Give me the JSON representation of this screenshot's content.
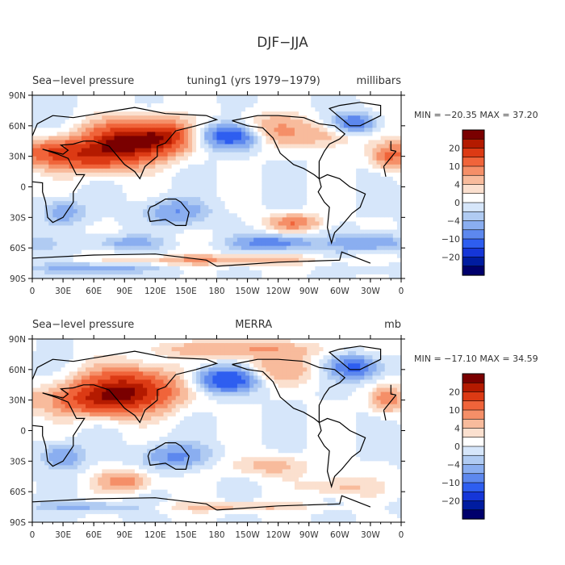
{
  "page": {
    "title": "DJF−JJA"
  },
  "chart_data": [
    {
      "type": "heatmap",
      "title_left": "Sea−level pressure",
      "title_center": "tuning1 (yrs 1979−1979)",
      "units": "millibars",
      "min_max": "MIN = −20.35  MAX =   37.20",
      "x_ticks": [
        "0",
        "30E",
        "60E",
        "90E",
        "120E",
        "150E",
        "180",
        "150W",
        "120W",
        "90W",
        "60W",
        "30W",
        "0"
      ],
      "y_ticks": [
        "90N",
        "60N",
        "30N",
        "0",
        "30S",
        "60S",
        "90S"
      ],
      "xlim": [
        0,
        360
      ],
      "ylim": [
        -90,
        90
      ],
      "fields": [
        {
          "lon": 95,
          "lat": 45,
          "value": 24,
          "wlon": 40,
          "wlat": 18
        },
        {
          "lon": 55,
          "lat": 30,
          "value": 15,
          "wlon": 45,
          "wlat": 15
        },
        {
          "lon": 130,
          "lat": 50,
          "value": 13,
          "wlon": 25,
          "wlat": 15
        },
        {
          "lon": 195,
          "lat": 50,
          "value": -15,
          "wlon": 30,
          "wlat": 12
        },
        {
          "lon": 230,
          "lat": 55,
          "value": 8,
          "wlon": 40,
          "wlat": 15
        },
        {
          "lon": 290,
          "lat": 50,
          "value": 5,
          "wlon": 30,
          "wlat": 12
        },
        {
          "lon": 315,
          "lat": 62,
          "value": -11,
          "wlon": 20,
          "wlat": 10
        },
        {
          "lon": 345,
          "lat": 30,
          "value": 8,
          "wlon": 15,
          "wlat": 12
        },
        {
          "lon": 20,
          "lat": 35,
          "value": 9,
          "wlon": 25,
          "wlat": 12
        },
        {
          "lon": 140,
          "lat": -25,
          "value": -7,
          "wlon": 30,
          "wlat": 12
        },
        {
          "lon": 30,
          "lat": -25,
          "value": -6,
          "wlon": 20,
          "wlat": 12
        },
        {
          "lon": 255,
          "lat": -35,
          "value": 10,
          "wlon": 25,
          "wlat": 8
        },
        {
          "lon": 235,
          "lat": -55,
          "value": -10,
          "wlon": 35,
          "wlat": 7
        },
        {
          "lon": 330,
          "lat": -55,
          "value": -8,
          "wlon": 35,
          "wlat": 8
        },
        {
          "lon": 90,
          "lat": -55,
          "value": -5,
          "wlon": 35,
          "wlat": 7
        },
        {
          "lon": 180,
          "lat": -72,
          "value": 7,
          "wlon": 90,
          "wlat": 5
        },
        {
          "lon": 60,
          "lat": -80,
          "value": -6,
          "wlon": 60,
          "wlat": 5
        }
      ],
      "colorbar": {
        "labels": [
          "20",
          "10",
          "4",
          "0",
          "−4",
          "−10",
          "−20"
        ]
      }
    },
    {
      "type": "heatmap",
      "title_left": "Sea−level pressure",
      "title_center": "MERRA",
      "units": "mb",
      "min_max": "MIN = −17.10  MAX =   34.59",
      "x_ticks": [
        "0",
        "30E",
        "60E",
        "90E",
        "120E",
        "150E",
        "180",
        "150W",
        "120W",
        "90W",
        "60W",
        "30W",
        "0"
      ],
      "y_ticks": [
        "90N",
        "60N",
        "30N",
        "0",
        "30S",
        "60S",
        "90S"
      ],
      "xlim": [
        0,
        360
      ],
      "ylim": [
        -90,
        90
      ],
      "fields": [
        {
          "lon": 95,
          "lat": 40,
          "value": 22,
          "wlon": 45,
          "wlat": 20
        },
        {
          "lon": 55,
          "lat": 30,
          "value": 12,
          "wlon": 45,
          "wlat": 15
        },
        {
          "lon": 190,
          "lat": 50,
          "value": -15,
          "wlon": 30,
          "wlat": 12
        },
        {
          "lon": 240,
          "lat": 60,
          "value": 6,
          "wlon": 40,
          "wlat": 15
        },
        {
          "lon": 315,
          "lat": 62,
          "value": -11,
          "wlon": 25,
          "wlat": 12
        },
        {
          "lon": 345,
          "lat": 30,
          "value": 8,
          "wlon": 15,
          "wlat": 12
        },
        {
          "lon": 200,
          "lat": 80,
          "value": 7,
          "wlon": 80,
          "wlat": 8
        },
        {
          "lon": 140,
          "lat": -25,
          "value": -8,
          "wlon": 30,
          "wlat": 12
        },
        {
          "lon": 30,
          "lat": -25,
          "value": -7,
          "wlon": 20,
          "wlat": 12
        },
        {
          "lon": 90,
          "lat": -50,
          "value": 9,
          "wlon": 25,
          "wlat": 10
        },
        {
          "lon": 230,
          "lat": -35,
          "value": 5,
          "wlon": 40,
          "wlat": 10
        },
        {
          "lon": 300,
          "lat": -55,
          "value": 5,
          "wlon": 35,
          "wlat": 10
        },
        {
          "lon": 60,
          "lat": -75,
          "value": -5,
          "wlon": 60,
          "wlat": 5
        },
        {
          "lon": 190,
          "lat": -75,
          "value": 5,
          "wlon": 80,
          "wlat": 5
        }
      ],
      "colorbar": {
        "labels": [
          "20",
          "10",
          "4",
          "0",
          "−4",
          "−10",
          "−20"
        ]
      }
    }
  ],
  "colors": {
    "levels": [
      "#7a0000",
      "#b41a00",
      "#dc3a14",
      "#f0643a",
      "#f58f68",
      "#f8bb9c",
      "#fbe0cf",
      "#ffffff",
      "#d6e6fa",
      "#b0cbf2",
      "#8aaef0",
      "#5d88ee",
      "#2e5ef0",
      "#1536d8",
      "#001ca0",
      "#00006c"
    ]
  }
}
